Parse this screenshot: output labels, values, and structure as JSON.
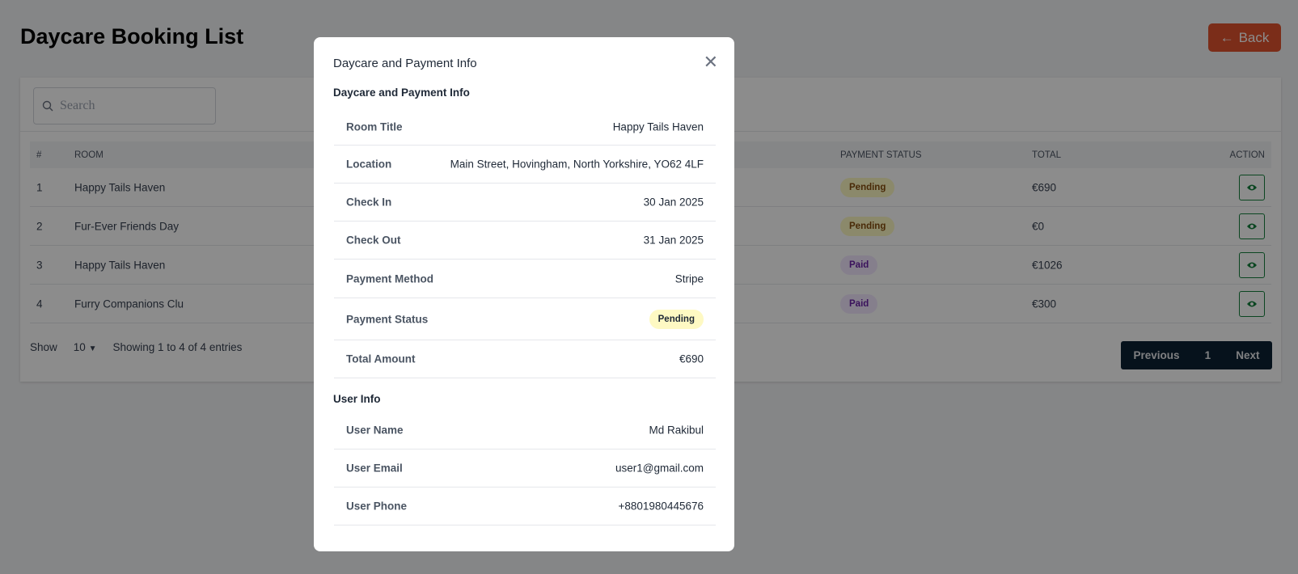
{
  "page": {
    "title": "Daycare Booking List",
    "back_label": "Back"
  },
  "search": {
    "placeholder": "Search"
  },
  "table": {
    "headers": {
      "num": "#",
      "room": "ROOM",
      "payment_status": "PAYMENT STATUS",
      "total": "TOTAL",
      "action": "ACTION"
    },
    "rows": [
      {
        "num": "1",
        "room": "Happy Tails Haven",
        "status": "Pending",
        "total": "€690"
      },
      {
        "num": "2",
        "room": "Fur-Ever Friends Day",
        "status": "Pending",
        "total": "€0"
      },
      {
        "num": "3",
        "room": "Happy Tails Haven",
        "status": "Paid",
        "total": "€1026"
      },
      {
        "num": "4",
        "room": "Furry Companions Clu",
        "status": "Paid",
        "total": "€300"
      }
    ]
  },
  "footer": {
    "show": "Show",
    "page_size": "10",
    "info": "Showing 1 to 4 of 4 entries"
  },
  "pagination": {
    "previous": "Previous",
    "page": "1",
    "next": "Next"
  },
  "modal": {
    "title": "Daycare and Payment Info",
    "section1": "Daycare and Payment Info",
    "details": [
      {
        "label": "Room Title",
        "value": "Happy Tails Haven"
      },
      {
        "label": "Location",
        "value": "Main Street, Hovingham, North Yorkshire, YO62 4LF"
      },
      {
        "label": "Check In",
        "value": "30 Jan 2025"
      },
      {
        "label": "Check Out",
        "value": "31 Jan 2025"
      },
      {
        "label": "Payment Method",
        "value": "Stripe"
      },
      {
        "label": "Payment Status",
        "value": "Pending"
      },
      {
        "label": "Total Amount",
        "value": "€690"
      }
    ],
    "section2": "User Info",
    "user": [
      {
        "label": "User Name",
        "value": "Md Rakibul"
      },
      {
        "label": "User Email",
        "value": "user1@gmail.com"
      },
      {
        "label": "User Phone",
        "value": "+8801980445676"
      }
    ]
  },
  "colors": {
    "back": "#e0532f",
    "pager": "#0b2233",
    "pending_bg": "#fef9c3",
    "paid_bg": "#f3e8ff",
    "eye": "#15803d"
  }
}
